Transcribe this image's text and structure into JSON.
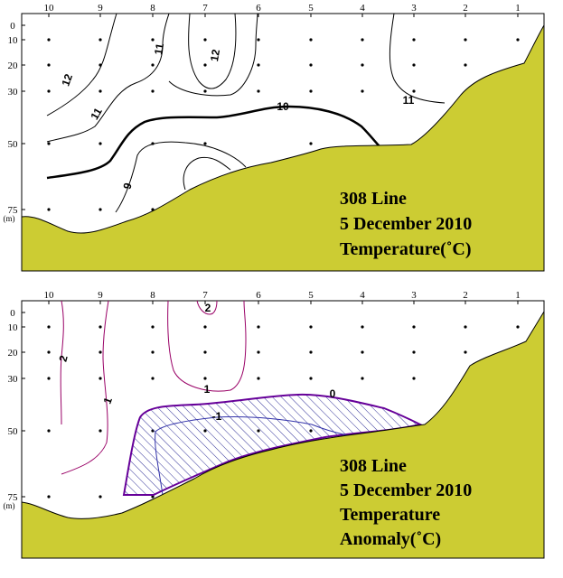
{
  "chart_data": [
    {
      "type": "contour",
      "title_lines": [
        "308 Line",
        "5 December 2010",
        "Temperature(˚C)"
      ],
      "station_labels": [
        "10",
        "9",
        "8",
        "7",
        "6",
        "5",
        "4",
        "3",
        "2",
        "1"
      ],
      "depth_labels": [
        "0",
        "10",
        "20",
        "30",
        "50",
        "75"
      ],
      "depth_unit": "(m)",
      "contour_labels": [
        "12",
        "11",
        "11",
        "12",
        "11",
        "10",
        "9"
      ],
      "colors": {
        "terrain": "#cccc33",
        "contour": "#000000",
        "thick_contour": "#000000"
      }
    },
    {
      "type": "contour",
      "title_lines": [
        "308 Line",
        "5 December 2010",
        "Temperature",
        "Anomaly(˚C)"
      ],
      "station_labels": [
        "10",
        "9",
        "8",
        "7",
        "6",
        "5",
        "4",
        "3",
        "2",
        "1"
      ],
      "depth_labels": [
        "0",
        "10",
        "20",
        "30",
        "50",
        "75"
      ],
      "depth_unit": "(m)",
      "contour_labels": [
        "2",
        "2",
        "1",
        "1",
        "0",
        "-1"
      ],
      "colors": {
        "terrain": "#cccc33",
        "contour": "#990066",
        "zero_contour": "#660099",
        "negative_contour": "#3333aa",
        "hatch": "#333399"
      }
    }
  ]
}
